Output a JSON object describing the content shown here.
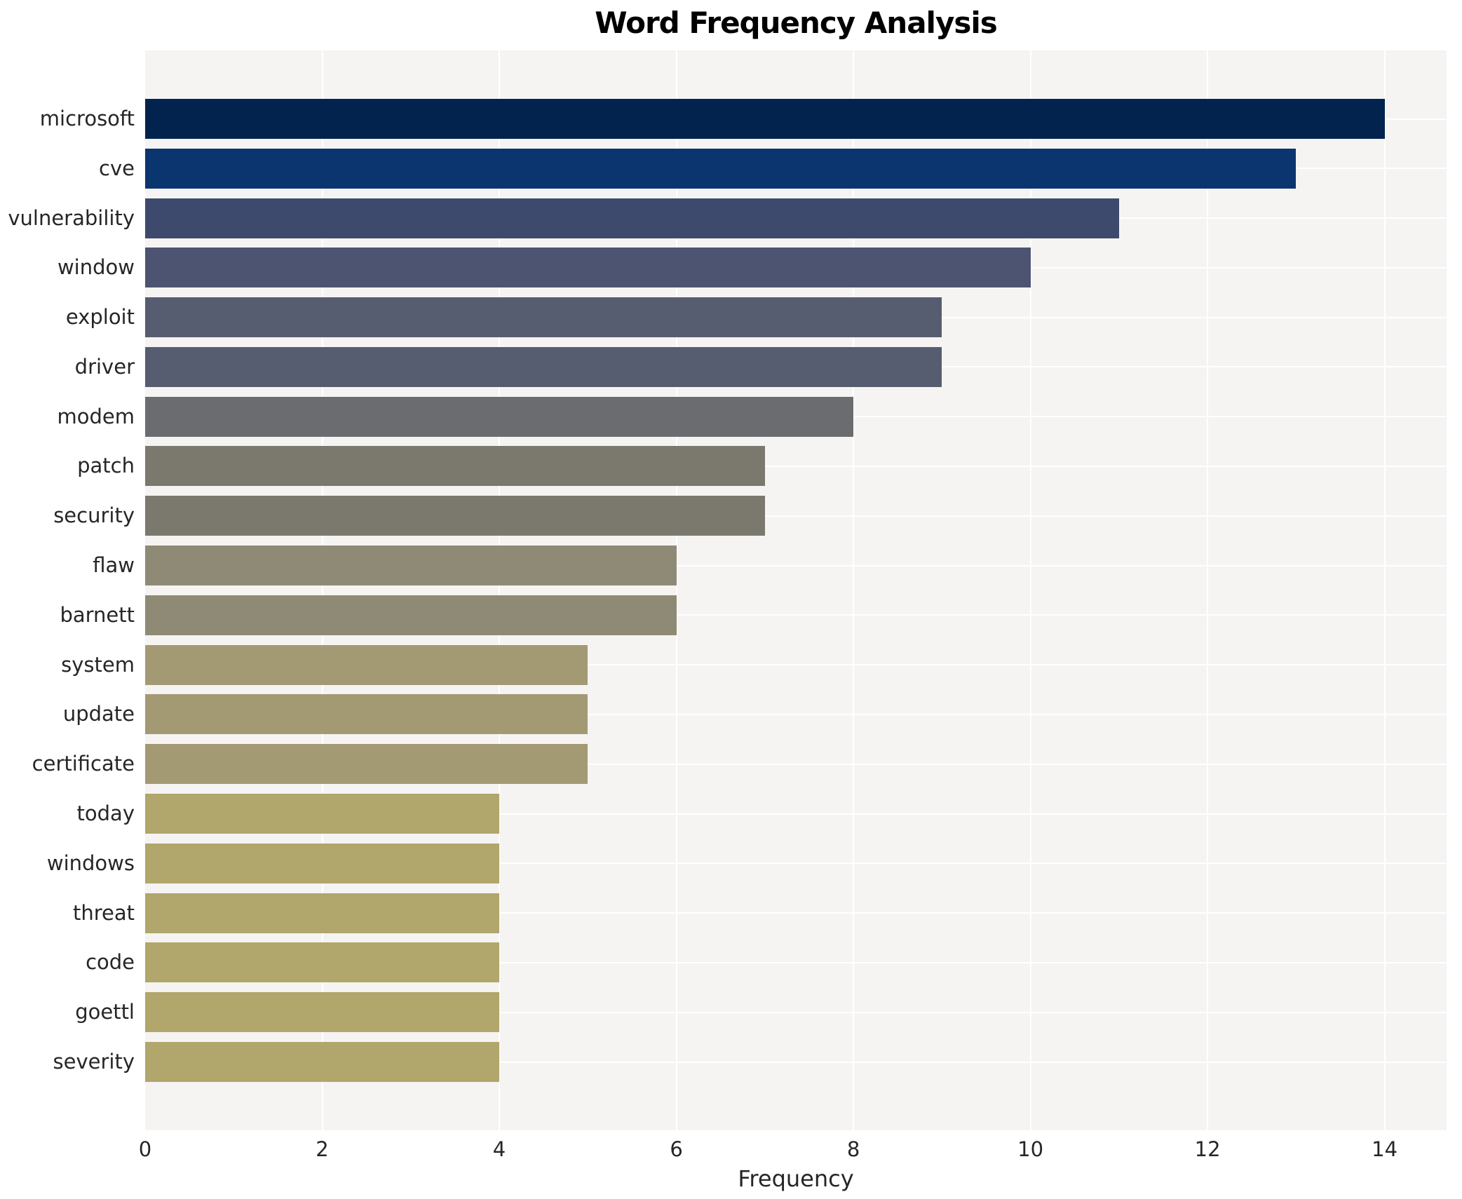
{
  "chart_data": {
    "type": "bar",
    "orientation": "horizontal",
    "title": "Word Frequency Analysis",
    "xlabel": "Frequency",
    "ylabel": "",
    "categories": [
      "microsoft",
      "cve",
      "vulnerability",
      "window",
      "exploit",
      "driver",
      "modem",
      "patch",
      "security",
      "flaw",
      "barnett",
      "system",
      "update",
      "certificate",
      "today",
      "windows",
      "threat",
      "code",
      "goettl",
      "severity"
    ],
    "values": [
      14,
      13,
      11,
      10,
      9,
      9,
      8,
      7,
      7,
      6,
      6,
      5,
      5,
      5,
      4,
      4,
      4,
      4,
      4,
      4
    ],
    "bar_colors": [
      "#01234e",
      "#0b356f",
      "#3d4a6e",
      "#4c5471",
      "#575d70",
      "#575d70",
      "#6a6c70",
      "#7b786e",
      "#7b786e",
      "#8e8a75",
      "#8e8a75",
      "#a39a74",
      "#a39a74",
      "#a39a74",
      "#b1a66b",
      "#b1a66b",
      "#b1a66b",
      "#b1a66b",
      "#b1a66b",
      "#b1a66b"
    ],
    "xlim": [
      0,
      14.7
    ],
    "xticks": [
      0,
      2,
      4,
      6,
      8,
      10,
      12,
      14
    ],
    "grid": true,
    "legend": "none",
    "plot_bg": "#f5f4f2",
    "grid_color": "#ffffff",
    "title_color": "#000000",
    "tick_color": "#262626"
  }
}
